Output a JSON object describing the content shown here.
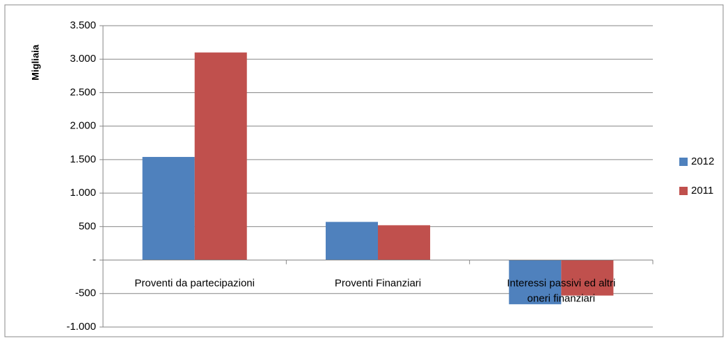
{
  "chart_data": {
    "type": "bar",
    "y_label": "Migliaia",
    "categories": [
      "Proventi da partecipazioni",
      "Proventi Finanziari",
      "Interessi passivi  ed altri oneri finanziari"
    ],
    "series": [
      {
        "name": "2012",
        "color": "#4f81bd",
        "values": [
          1540,
          570,
          -660
        ]
      },
      {
        "name": "2011",
        "color": "#c0504d",
        "values": [
          3100,
          520,
          -530
        ]
      }
    ],
    "ylim": [
      -1000,
      3500
    ],
    "yticks": [
      {
        "value": -1000,
        "label": "-1.000"
      },
      -500,
      {
        "value": 0,
        "label": "-"
      },
      500,
      {
        "value": 1000,
        "label": "1.000"
      },
      {
        "value": 1500,
        "label": "1.500"
      },
      {
        "value": 2000,
        "label": "2.000"
      },
      {
        "value": 2500,
        "label": "2.500"
      },
      {
        "value": 3000,
        "label": "3.000"
      },
      {
        "value": 3500,
        "label": "3.500"
      }
    ],
    "grid": true,
    "legend": "right"
  }
}
